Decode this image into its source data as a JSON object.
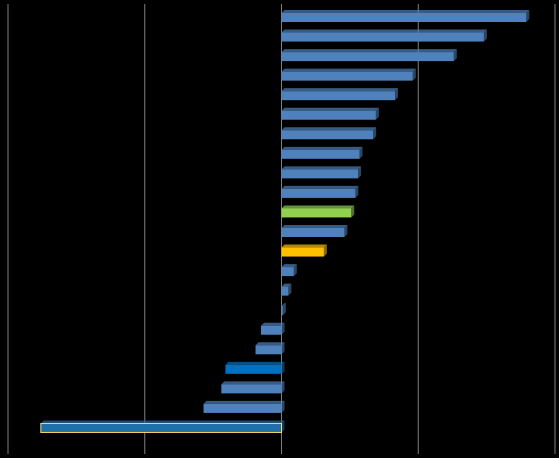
{
  "chart_data": {
    "type": "bar",
    "orientation": "horizontal",
    "categories": [
      null,
      null,
      null,
      null,
      null,
      null,
      null,
      null,
      null,
      null,
      null,
      null,
      null,
      null,
      null,
      null,
      null,
      null,
      null,
      null,
      null,
      null
    ],
    "values": [
      179,
      148,
      126,
      96,
      83,
      69,
      67,
      57,
      56,
      54,
      51,
      46,
      31,
      9,
      5,
      1,
      -15,
      -19,
      -41,
      -44,
      -57,
      -176
    ],
    "colors": [
      "#4f81bd",
      "#4f81bd",
      "#4f81bd",
      "#4f81bd",
      "#4f81bd",
      "#4f81bd",
      "#4f81bd",
      "#4f81bd",
      "#4f81bd",
      "#4f81bd",
      "#92d050",
      "#4f81bd",
      "#ffc000",
      "#4f81bd",
      "#4f81bd",
      "#4f81bd",
      "#4f81bd",
      "#4f81bd",
      "#0070c0",
      "#4f81bd",
      "#4f81bd",
      "#1f6fa8"
    ],
    "xlim": [
      -200,
      200
    ],
    "xticks": [
      -200,
      -100,
      0,
      100,
      200
    ],
    "grid": true
  }
}
